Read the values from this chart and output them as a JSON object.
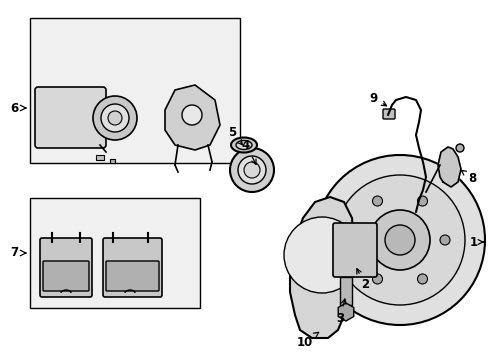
{
  "bg_color": "#ffffff",
  "line_color": "#000000",
  "fill_color": "#e8e8e8",
  "box_fill": "#f0f0f0",
  "figsize": [
    4.89,
    3.6
  ],
  "dpi": 100
}
